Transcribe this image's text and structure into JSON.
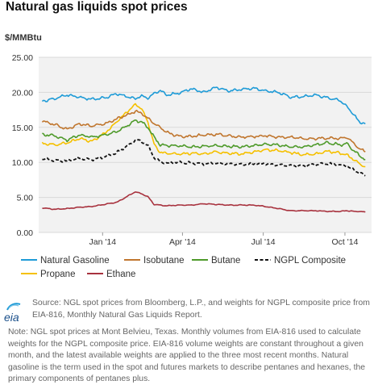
{
  "header": {
    "title": "Natural gas liquids spot prices",
    "unit": "$/MMBtu"
  },
  "footer": {
    "logo_text": "eia",
    "source": "Source: NGL spot prices from Bloomberg, L.P., and weights for NGPL composite price from EIA-816, Monthly Natural Gas Liquids Report.",
    "note": "Note: NGL spot prices at Mont Belvieu, Texas. Monthly volumes from EIA-816 used to calculate weights for the NGPL composite price. EIA-816 volume weights are constant throughout a given month, and the latest available weights are applied to the three most recent months. Natural gasoline is the term used in the spot and futures markets to describe pentanes and hexanes, the primary components of pentanes plus."
  },
  "colors": {
    "natural_gasoline": "#1e9bd7",
    "isobutane": "#c0762e",
    "butane": "#4e9a2a",
    "ngpl_composite": "#111111",
    "propane": "#f5c000",
    "ethane": "#a8323e",
    "plot_background": "#f2f2f2",
    "gridline": "#d9d9d9"
  },
  "chart_data": {
    "type": "line",
    "title": "Natural gas liquids spot prices",
    "ylabel": "$/MMBtu",
    "xlabel": "",
    "ylim": [
      0,
      25
    ],
    "yticks": [
      "0.00",
      "5.00",
      "10.00",
      "15.00",
      "20.00",
      "25.00"
    ],
    "xlim": [
      "2013-10-21",
      "2014-10-31"
    ],
    "xticks": [
      {
        "label": "Jan '14",
        "date": "2014-01-01"
      },
      {
        "label": "Apr '14",
        "date": "2014-04-01"
      },
      {
        "label": "Jul '14",
        "date": "2014-07-01"
      },
      {
        "label": "Oct '14",
        "date": "2014-10-01"
      }
    ],
    "grid": "horizontal",
    "legend_position": "bottom",
    "x": [
      "2013-10-25",
      "2013-11-08",
      "2013-11-22",
      "2013-12-06",
      "2013-12-20",
      "2014-01-03",
      "2014-01-17",
      "2014-01-31",
      "2014-02-07",
      "2014-02-14",
      "2014-02-21",
      "2014-02-28",
      "2014-03-07",
      "2014-03-14",
      "2014-03-28",
      "2014-04-11",
      "2014-04-25",
      "2014-05-09",
      "2014-05-23",
      "2014-06-06",
      "2014-06-20",
      "2014-07-04",
      "2014-07-18",
      "2014-08-01",
      "2014-08-15",
      "2014-08-29",
      "2014-09-12",
      "2014-09-26",
      "2014-10-03",
      "2014-10-10",
      "2014-10-17",
      "2014-10-24"
    ],
    "series": [
      {
        "name": "Natural Gasoline",
        "color": "#1e9bd7",
        "dash": "solid",
        "values": [
          18.7,
          19.1,
          19.6,
          19.3,
          19.0,
          19.2,
          19.8,
          19.3,
          19.1,
          19.5,
          19.2,
          19.8,
          20.3,
          19.6,
          19.9,
          20.5,
          20.0,
          20.7,
          20.2,
          20.4,
          20.6,
          20.2,
          20.0,
          19.3,
          19.4,
          19.6,
          19.2,
          18.8,
          18.0,
          17.0,
          15.8,
          15.5
        ]
      },
      {
        "name": "Isobutane",
        "color": "#c0762e",
        "dash": "solid",
        "values": [
          15.9,
          15.4,
          14.7,
          15.5,
          15.2,
          15.5,
          16.2,
          16.9,
          17.3,
          17.0,
          16.3,
          15.6,
          15.0,
          14.3,
          13.7,
          13.7,
          13.9,
          14.0,
          13.8,
          13.6,
          13.7,
          13.8,
          13.6,
          13.6,
          13.4,
          13.4,
          13.5,
          13.4,
          13.6,
          12.8,
          12.0,
          11.5
        ]
      },
      {
        "name": "Butane",
        "color": "#4e9a2a",
        "dash": "solid",
        "values": [
          14.0,
          13.8,
          13.2,
          13.9,
          13.6,
          13.9,
          14.4,
          15.4,
          16.0,
          15.8,
          15.0,
          13.6,
          12.5,
          12.4,
          12.4,
          12.2,
          12.3,
          12.4,
          12.3,
          12.2,
          12.4,
          12.6,
          12.5,
          12.2,
          12.2,
          12.5,
          12.8,
          12.5,
          12.7,
          11.8,
          11.0,
          10.4
        ]
      },
      {
        "name": "NGPL Composite",
        "color": "#111111",
        "dash": "dash",
        "values": [
          10.5,
          10.3,
          10.2,
          10.6,
          10.4,
          10.8,
          11.4,
          12.5,
          13.2,
          13.0,
          12.4,
          10.7,
          10.1,
          9.9,
          10.0,
          9.9,
          9.8,
          9.9,
          9.8,
          9.7,
          9.8,
          9.8,
          9.6,
          9.5,
          9.5,
          9.7,
          9.8,
          9.6,
          9.5,
          9.0,
          8.5,
          8.1
        ]
      },
      {
        "name": "Propane",
        "color": "#f5c000",
        "dash": "solid",
        "values": [
          12.7,
          12.5,
          12.8,
          13.4,
          13.0,
          14.1,
          15.8,
          17.5,
          18.3,
          17.6,
          15.8,
          12.6,
          11.4,
          11.3,
          11.2,
          11.3,
          11.2,
          11.5,
          11.3,
          11.2,
          11.5,
          11.8,
          11.7,
          11.4,
          11.1,
          11.2,
          11.6,
          11.3,
          11.1,
          10.5,
          9.8,
          9.4
        ]
      },
      {
        "name": "Ethane",
        "color": "#a8323e",
        "dash": "solid",
        "values": [
          3.5,
          3.3,
          3.4,
          3.6,
          3.7,
          4.0,
          4.3,
          5.3,
          5.8,
          5.5,
          5.1,
          4.0,
          3.9,
          3.8,
          3.9,
          3.9,
          4.1,
          4.0,
          3.9,
          3.9,
          3.9,
          3.7,
          3.4,
          3.1,
          3.1,
          3.1,
          3.0,
          3.0,
          3.1,
          3.0,
          3.0,
          2.9
        ]
      }
    ]
  }
}
